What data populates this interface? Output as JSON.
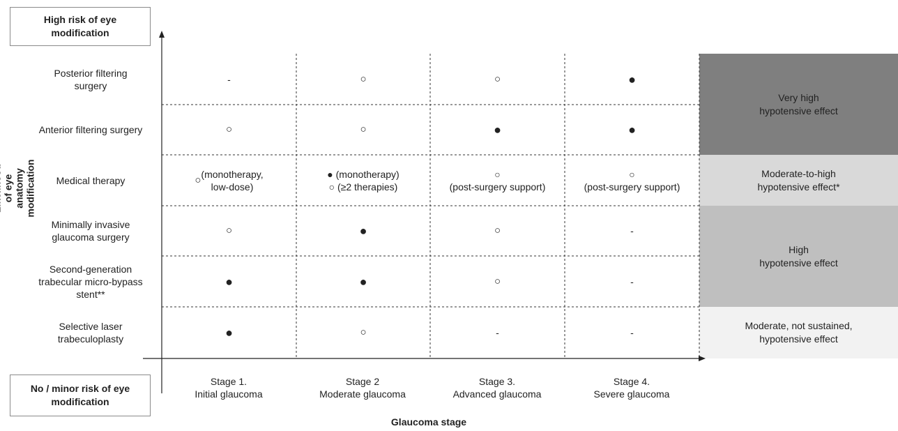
{
  "top_box": {
    "label": "High risk of eye\nmodification"
  },
  "bottom_box": {
    "label": "No / minor risk of eye\nmodification"
  },
  "y_axis_label": "Likelihood of eye\nanatomy modification",
  "x_axis_label": "Glaucoma stage",
  "stages": [
    "Stage 1.\nInitial glaucoma",
    "Stage 2\nModerate glaucoma",
    "Stage 3.\nAdvanced glaucoma",
    "Stage 4.\nSevere glaucoma"
  ],
  "rows": [
    {
      "label": "Posterior filtering\nsurgery",
      "cells": [
        {
          "symbol": "",
          "text": "-"
        },
        {
          "symbol": "○",
          "text": ""
        },
        {
          "symbol": "○",
          "text": ""
        },
        {
          "symbol": "●",
          "text": ""
        }
      ]
    },
    {
      "label": "Anterior filtering surgery",
      "cells": [
        {
          "symbol": "○",
          "text": ""
        },
        {
          "symbol": "○",
          "text": ""
        },
        {
          "symbol": "●",
          "text": ""
        },
        {
          "symbol": "●",
          "text": ""
        }
      ]
    },
    {
      "label": "Medical therapy",
      "cells": [
        {
          "symbol": "○",
          "text": " (monotherapy,\nlow-dose)"
        },
        {
          "symbol": "",
          "text": "● (monotherapy)\n○ (≥2 therapies)"
        },
        {
          "symbol": "",
          "text": "○\n(post-surgery support)"
        },
        {
          "symbol": "",
          "text": "○\n(post-surgery support)"
        }
      ]
    },
    {
      "label": "Minimally invasive\nglaucoma surgery",
      "cells": [
        {
          "symbol": "○",
          "text": ""
        },
        {
          "symbol": "●",
          "text": ""
        },
        {
          "symbol": "○",
          "text": ""
        },
        {
          "symbol": "",
          "text": "-"
        }
      ]
    },
    {
      "label": "Second-generation\ntrabecular micro-bypass\nstent**",
      "cells": [
        {
          "symbol": "●",
          "text": ""
        },
        {
          "symbol": "●",
          "text": ""
        },
        {
          "symbol": "○",
          "text": ""
        },
        {
          "symbol": "",
          "text": "-"
        }
      ]
    },
    {
      "label": "Selective laser\ntrabeculoplasty",
      "cells": [
        {
          "symbol": "●",
          "text": ""
        },
        {
          "symbol": "○",
          "text": ""
        },
        {
          "symbol": "",
          "text": "-"
        },
        {
          "symbol": "",
          "text": "-"
        }
      ]
    }
  ],
  "effects": [
    {
      "label": "Very high\nhypotensive effect",
      "color": "#7f7f7f"
    },
    {
      "label": "Moderate-to-high\nhypotensive effect*",
      "color": "#d9d9d9"
    },
    {
      "label": "High\nhypotensive effect",
      "color": "#bfbfbf"
    },
    {
      "label": "Moderate, not sustained,\nhypotensive effect",
      "color": "#f2f2f2"
    }
  ]
}
